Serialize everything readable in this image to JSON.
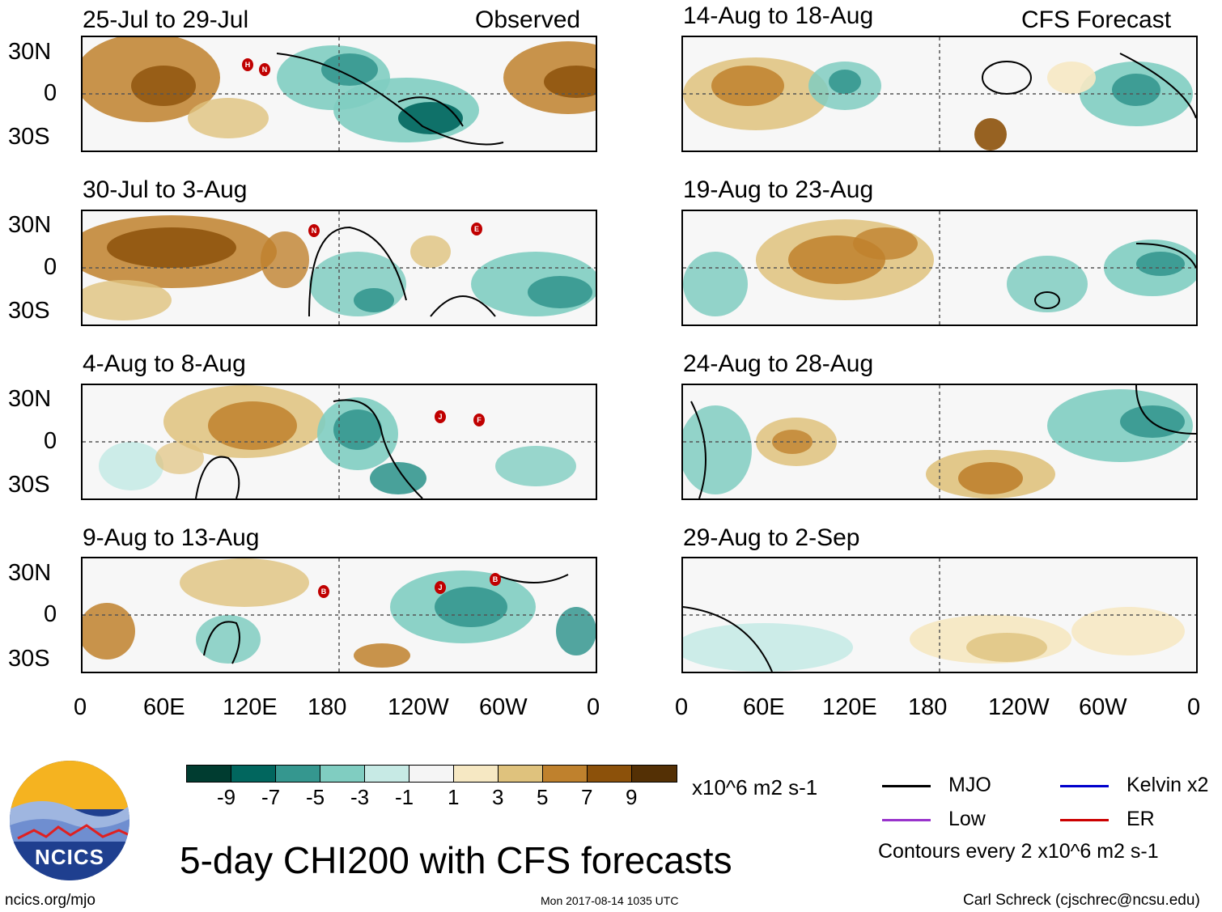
{
  "headers": {
    "left": "Observed",
    "right": "CFS Forecast"
  },
  "observed_panels": [
    {
      "period": "25-Jul to 29-Jul"
    },
    {
      "period": "30-Jul to 3-Aug"
    },
    {
      "period": "4-Aug to 8-Aug"
    },
    {
      "period": "9-Aug to 13-Aug"
    }
  ],
  "forecast_panels": [
    {
      "period": "14-Aug to 18-Aug"
    },
    {
      "period": "19-Aug to 23-Aug"
    },
    {
      "period": "24-Aug to 28-Aug"
    },
    {
      "period": "29-Aug to 2-Sep"
    }
  ],
  "lat_labels": [
    "30N",
    "0",
    "30S"
  ],
  "lon_labels": [
    "0",
    "60E",
    "120E",
    "180",
    "120W",
    "60W",
    "0"
  ],
  "colorbar": {
    "units": "x10^6 m2 s-1",
    "tick_labels": [
      "-9",
      "-7",
      "-5",
      "-3",
      "-1",
      "1",
      "3",
      "5",
      "7",
      "9"
    ],
    "colors": [
      "#003c30",
      "#01665e",
      "#35978f",
      "#80cdc1",
      "#c7eae5",
      "#f5f5f5",
      "#f6e8c3",
      "#dfc27d",
      "#bf812d",
      "#8c510a",
      "#543005"
    ]
  },
  "legend": {
    "items": [
      {
        "label": "MJO",
        "color": "#000000"
      },
      {
        "label": "Kelvin x2",
        "color": "#0000cc"
      },
      {
        "label": "Low",
        "color": "#9933cc"
      },
      {
        "label": "ER",
        "color": "#cc0000"
      }
    ],
    "note": "Contours every 2 x10^6 m2 s-1"
  },
  "logo": {
    "text": "NCICS"
  },
  "title": "5-day CHI200 with CFS forecasts",
  "footer": {
    "url": "ncics.org/mjo",
    "timestamp": "Mon 2017-08-14 1035 UTC",
    "credit": "Carl Schreck (cjschrec@ncsu.edu)"
  },
  "storm_markers": [
    {
      "label": "H"
    },
    {
      "label": "N"
    },
    {
      "label": "N"
    },
    {
      "label": "E"
    },
    {
      "label": "J"
    },
    {
      "label": "F"
    },
    {
      "label": "B"
    },
    {
      "label": "J"
    },
    {
      "label": "B"
    }
  ]
}
